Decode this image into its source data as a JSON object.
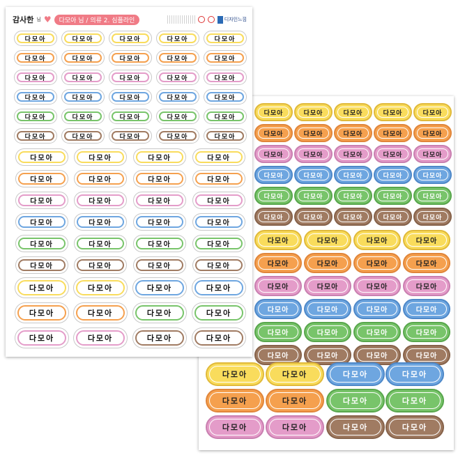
{
  "header": {
    "name": "감사한",
    "honorific": "님",
    "heart": "♥",
    "pill": "다모아 님 / 의류 2. 심플라인",
    "brand": "디자인느낌"
  },
  "label_text": "다모아",
  "colors": {
    "yellow": "#f9dc5c",
    "orange": "#f5a04e",
    "pink": "#e49cc9",
    "blue": "#6ea6e0",
    "green": "#78c46a",
    "brown": "#a07b62"
  },
  "front_sheet": {
    "section_small": {
      "cols": 5,
      "rows": [
        "yellow",
        "orange",
        "pink",
        "blue",
        "green",
        "brown"
      ]
    },
    "section_medium": {
      "cols": 4,
      "rows": [
        "yellow",
        "orange",
        "pink",
        "blue",
        "green",
        "brown"
      ]
    },
    "section_large": {
      "rows": [
        [
          "yellow",
          "yellow",
          "blue",
          "blue"
        ],
        [
          "orange",
          "orange",
          "green",
          "green"
        ],
        [
          "pink",
          "pink",
          "brown",
          "brown"
        ]
      ]
    }
  },
  "back_sheet": {
    "section_small": {
      "cols": 5,
      "rows": [
        "yellow",
        "orange",
        "pink",
        "blue",
        "green",
        "brown"
      ]
    },
    "section_medium": {
      "cols": 4,
      "rows": [
        "yellow",
        "orange",
        "pink",
        "blue",
        "green",
        "brown"
      ]
    },
    "section_large": {
      "rows": [
        [
          "yellow",
          "yellow",
          "blue",
          "blue"
        ],
        [
          "orange",
          "orange",
          "green",
          "green"
        ],
        [
          "pink",
          "pink",
          "brown",
          "brown"
        ]
      ]
    }
  }
}
